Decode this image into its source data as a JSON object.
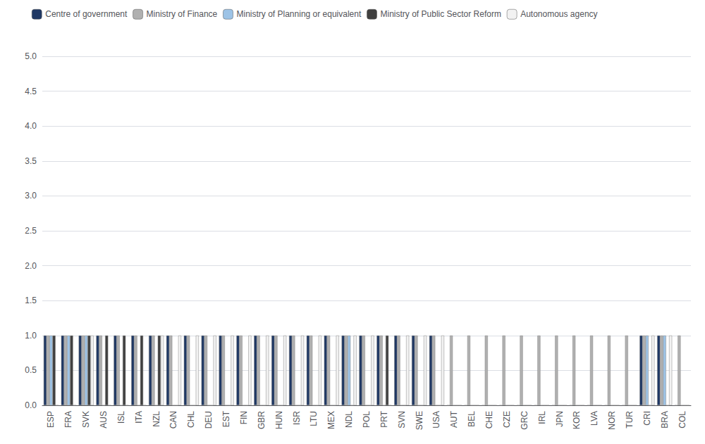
{
  "chart_data": {
    "type": "bar",
    "categories": [
      "ESP",
      "FRA",
      "SVK",
      "AUS",
      "ISL",
      "ITA",
      "NZL",
      "CAN",
      "CHL",
      "DEU",
      "EST",
      "FIN",
      "GBR",
      "HUN",
      "ISR",
      "LTU",
      "MEX",
      "NDL",
      "POL",
      "PRT",
      "SVN",
      "SWE",
      "USA",
      "AUT",
      "BEL",
      "CHE",
      "CZE",
      "GRC",
      "IRL",
      "JPN",
      "KOR",
      "LVA",
      "NOR",
      "TUR",
      "CRI",
      "BRA",
      "COL"
    ],
    "series": [
      {
        "name": "Centre of government",
        "color": "#1F3864",
        "values": [
          1,
          1,
          1,
          1,
          1,
          1,
          1,
          1,
          1,
          1,
          1,
          1,
          1,
          1,
          1,
          1,
          1,
          1,
          1,
          1,
          1,
          1,
          1,
          0,
          0,
          0,
          0,
          0,
          0,
          0,
          0,
          0,
          0,
          0,
          1,
          1,
          0
        ]
      },
      {
        "name": "Ministry of Finance",
        "color": "#B0B0B0",
        "values": [
          1,
          1,
          1,
          1,
          1,
          1,
          1,
          1,
          1,
          1,
          1,
          1,
          1,
          1,
          1,
          1,
          1,
          1,
          1,
          1,
          1,
          1,
          1,
          1,
          1,
          1,
          1,
          1,
          1,
          1,
          1,
          1,
          1,
          1,
          1,
          1,
          1
        ]
      },
      {
        "name": "Ministry of Planning or equivalent",
        "color": "#9DC3E6",
        "values": [
          1,
          1,
          1,
          0,
          0,
          0,
          0,
          0,
          0,
          0,
          0,
          0,
          0,
          0,
          0,
          0,
          0,
          1,
          0,
          0,
          0,
          0,
          0,
          0,
          0,
          0,
          0,
          0,
          0,
          0,
          0,
          0,
          0,
          0,
          1,
          1,
          0
        ]
      },
      {
        "name": "Ministry of Public Sector Reform",
        "color": "#404040",
        "values": [
          1,
          1,
          1,
          1,
          1,
          1,
          1,
          0,
          0,
          0,
          0,
          0,
          0,
          0,
          0,
          0,
          0,
          0,
          0,
          1,
          0,
          0,
          0,
          0,
          0,
          0,
          0,
          0,
          0,
          0,
          0,
          0,
          0,
          0,
          0,
          0,
          0
        ]
      },
      {
        "name": "Autonomous agency",
        "color": "#F2F2F2",
        "values": [
          0,
          0,
          1,
          0,
          0,
          0,
          1,
          1,
          1,
          1,
          1,
          1,
          1,
          1,
          1,
          1,
          1,
          1,
          1,
          0,
          1,
          1,
          1,
          0,
          0,
          0,
          0,
          0,
          0,
          0,
          0,
          0,
          0,
          0,
          1,
          1,
          0
        ]
      }
    ],
    "ylim": [
      0,
      5
    ],
    "yticks": [
      {
        "value": 0,
        "label": "0.0"
      },
      0.5,
      {
        "value": 1,
        "label": "1.0"
      },
      1.5,
      {
        "value": 2,
        "label": "2.0"
      },
      2.5,
      {
        "value": 3,
        "label": "3.0"
      },
      3.5,
      {
        "value": 4,
        "label": "4.0"
      },
      4.5,
      {
        "value": 5,
        "label": "5.0"
      }
    ],
    "grid": true,
    "legend": "upper left"
  }
}
